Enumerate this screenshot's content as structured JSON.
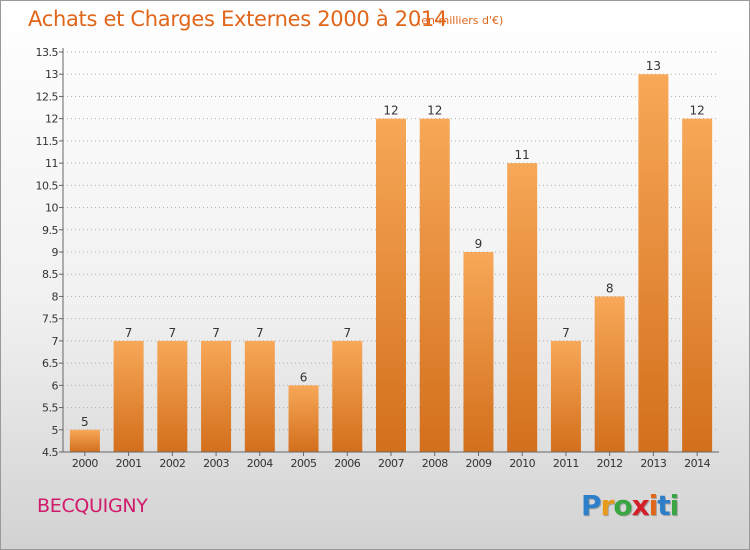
{
  "header": {
    "title": "Achats et Charges Externes 2000 à 2014",
    "unit_note": "(en milliers d'€)"
  },
  "footer": {
    "commune": "BECQUIGNY",
    "logo": {
      "letters": [
        "P",
        "r",
        "o",
        "x",
        "i",
        "t",
        "i"
      ],
      "colors": [
        "#2e7fc9",
        "#e89a1b",
        "#3aa543",
        "#d21f2a",
        "#e0661a",
        "#2e7fc9",
        "#3aa543"
      ]
    }
  },
  "colors": {
    "bar_light": "#f7a858",
    "bar_dark": "#d36f1c",
    "label": "#333333",
    "axis": "#666666",
    "grid": "#b0b0b0"
  },
  "chart_data": {
    "type": "bar",
    "title": "Achats et Charges Externes 2000 à 2014",
    "xlabel": "",
    "ylabel": "",
    "categories": [
      "2000",
      "2001",
      "2002",
      "2003",
      "2004",
      "2005",
      "2006",
      "2007",
      "2008",
      "2009",
      "2010",
      "2011",
      "2012",
      "2013",
      "2014"
    ],
    "values": [
      5,
      7,
      7,
      7,
      7,
      6,
      7,
      12,
      12,
      9,
      11,
      7,
      8,
      13,
      12
    ],
    "value_labels": [
      "5",
      "7",
      "7",
      "7",
      "7",
      "6",
      "7",
      "12",
      "12",
      "9",
      "11",
      "7",
      "8",
      "13",
      "12"
    ],
    "ylim": [
      4.5,
      13.5
    ],
    "yticks": [
      4.5,
      5,
      5.5,
      6,
      6.5,
      7,
      7.5,
      8,
      8.5,
      9,
      9.5,
      10,
      10.5,
      11,
      11.5,
      12,
      12.5,
      13,
      13.5
    ],
    "ytick_labels": [
      "4.5",
      "5",
      "5.5",
      "6",
      "6.5",
      "7",
      "7.5",
      "8",
      "8.5",
      "9",
      "9.5",
      "10",
      "10.5",
      "11",
      "11.5",
      "12",
      "12.5",
      "13",
      "13.5"
    ],
    "grid": "horizontal-dotted",
    "legend": "none"
  }
}
